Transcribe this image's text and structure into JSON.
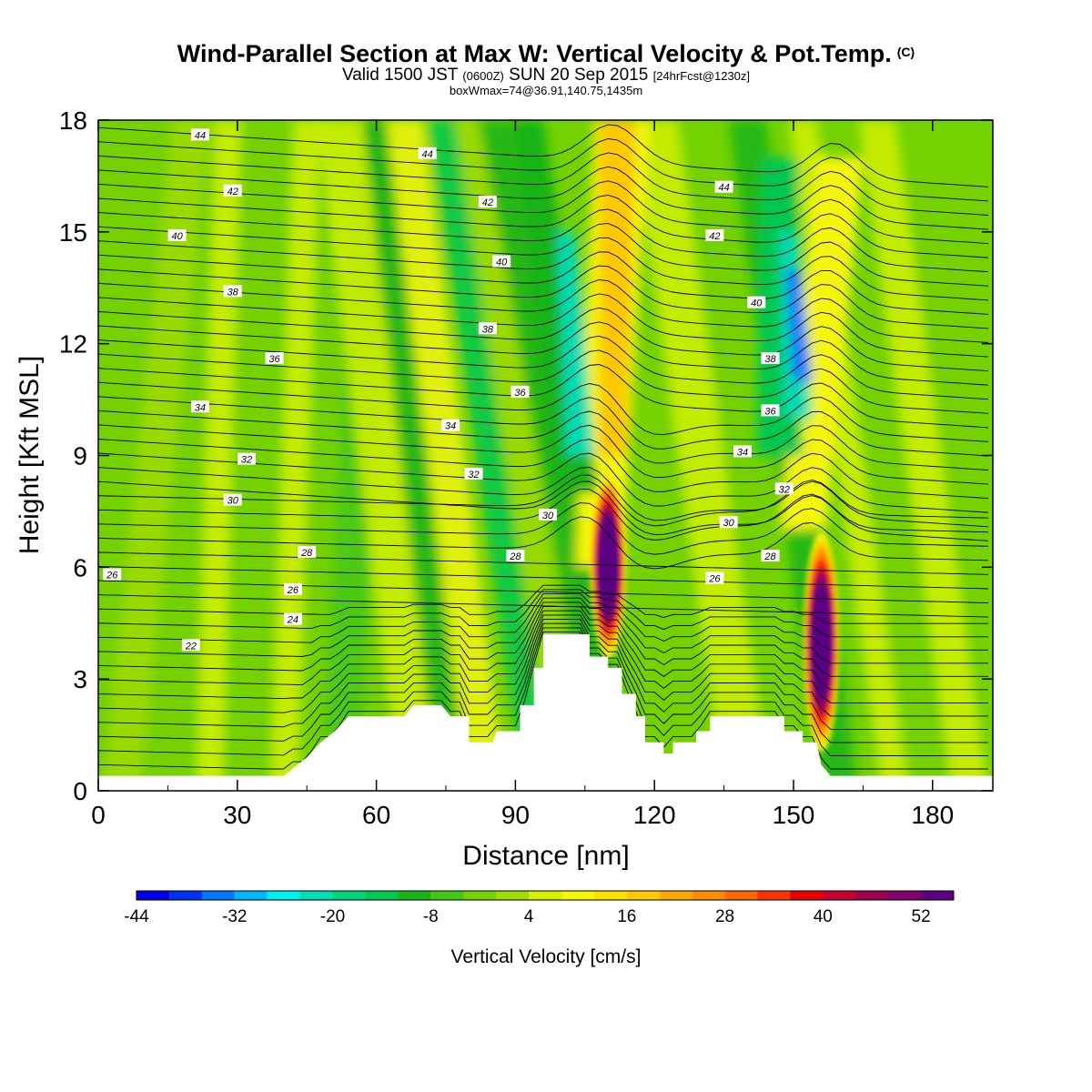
{
  "header": {
    "title": "Wind-Parallel Section at Max W: Vertical Velocity & Pot.Temp.",
    "copyright_mark": "(C)",
    "valid_prefix": "Valid 1500 JST",
    "valid_utc": "(0600Z)",
    "valid_date": "SUN 20 Sep 2015",
    "forecast": "[24hrFcst@1230z]",
    "box_info": "boxWmax=74@36.91,140.75,1435m"
  },
  "chart_data": {
    "type": "heatmap",
    "xlabel": "Distance [nm]",
    "ylabel": "Height [Kft MSL]",
    "xlim": [
      0,
      193
    ],
    "ylim": [
      0,
      18
    ],
    "x_ticks": [
      0,
      30,
      60,
      90,
      120,
      150,
      180
    ],
    "y_ticks": [
      0,
      3,
      6,
      9,
      12,
      15,
      18
    ],
    "colorbar": {
      "label": "Vertical Velocity [cm/s]",
      "tick_labels": [
        -44,
        -32,
        -20,
        -8,
        4,
        16,
        28,
        40,
        52
      ],
      "colors": [
        "#0000e6",
        "#0032f5",
        "#0078ff",
        "#00b4ff",
        "#00f0f0",
        "#00dcb4",
        "#00d278",
        "#00c850",
        "#19b419",
        "#46c818",
        "#73d200",
        "#a0dc00",
        "#d2f000",
        "#f5f50a",
        "#ffe100",
        "#ffc800",
        "#ffaa00",
        "#ff8c00",
        "#ff6400",
        "#ff3200",
        "#e60000",
        "#c80032",
        "#a00050",
        "#82006e",
        "#5a0082"
      ]
    },
    "updrafts": [
      {
        "x": 110,
        "zmin": 3.3,
        "zmax": 8.3,
        "peak_z": 5.8,
        "peak": 60
      },
      {
        "x": 156,
        "zmin": 1.3,
        "zmax": 7.2,
        "peak_z": 3.7,
        "peak": 74
      }
    ],
    "theta_labels": [
      {
        "v": "44",
        "x": 22,
        "z": 17.6
      },
      {
        "v": "44",
        "x": 71,
        "z": 17.1
      },
      {
        "v": "44",
        "x": 135,
        "z": 16.2
      },
      {
        "v": "42",
        "x": 29,
        "z": 16.1
      },
      {
        "v": "42",
        "x": 84,
        "z": 15.8
      },
      {
        "v": "42",
        "x": 133,
        "z": 14.9
      },
      {
        "v": "40",
        "x": 17,
        "z": 14.9
      },
      {
        "v": "40",
        "x": 87,
        "z": 14.2
      },
      {
        "v": "40",
        "x": 142,
        "z": 13.1
      },
      {
        "v": "38",
        "x": 29,
        "z": 13.4
      },
      {
        "v": "38",
        "x": 84,
        "z": 12.4
      },
      {
        "v": "38",
        "x": 145,
        "z": 11.6
      },
      {
        "v": "36",
        "x": 38,
        "z": 11.6
      },
      {
        "v": "36",
        "x": 91,
        "z": 10.7
      },
      {
        "v": "36",
        "x": 145,
        "z": 10.2
      },
      {
        "v": "34",
        "x": 22,
        "z": 10.3
      },
      {
        "v": "34",
        "x": 76,
        "z": 9.8
      },
      {
        "v": "34",
        "x": 139,
        "z": 9.1
      },
      {
        "v": "32",
        "x": 32,
        "z": 8.9
      },
      {
        "v": "32",
        "x": 81,
        "z": 8.5
      },
      {
        "v": "32",
        "x": 148,
        "z": 8.1
      },
      {
        "v": "30",
        "x": 29,
        "z": 7.8
      },
      {
        "v": "30",
        "x": 97,
        "z": 7.4
      },
      {
        "v": "30",
        "x": 136,
        "z": 7.2
      },
      {
        "v": "28",
        "x": 45,
        "z": 6.4
      },
      {
        "v": "28",
        "x": 90,
        "z": 6.3
      },
      {
        "v": "28",
        "x": 145,
        "z": 6.3
      },
      {
        "v": "26",
        "x": 3,
        "z": 5.8
      },
      {
        "v": "26",
        "x": 42,
        "z": 5.4
      },
      {
        "v": "26",
        "x": 133,
        "z": 5.7
      },
      {
        "v": "24",
        "x": 42,
        "z": 4.6
      },
      {
        "v": "22",
        "x": 20,
        "z": 3.9
      }
    ]
  }
}
